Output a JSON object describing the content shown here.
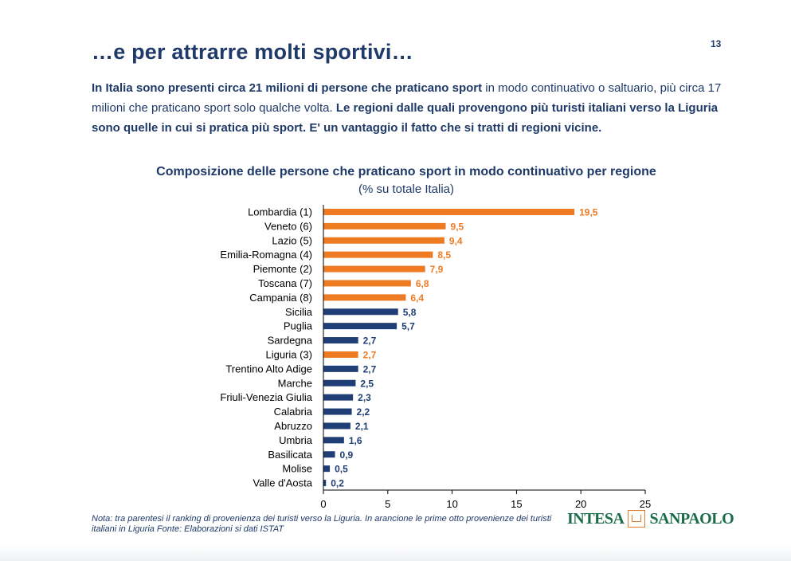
{
  "page": {
    "title": "…e per attrarre molti sportivi…",
    "page_number": "13",
    "intro": {
      "part1_bold": "In Italia sono presenti circa 21 milioni di persone che praticano sport",
      "part2": " in modo continuativo o saltuario, più circa 17 milioni che praticano sport solo qualche volta. ",
      "part3_bold": "Le regioni dalle quali provengono più turisti italiani verso la Liguria sono quelle in cui si pratica più sport. E' un vantaggio il fatto che si tratti di regioni vicine."
    },
    "note": "Nota: tra parentesi il ranking di provenienza dei turisti verso la Liguria. In arancione le prime otto provenienze dei turisti italiani in Liguria Fonte: Elaborazioni si dati ISTAT",
    "logo": {
      "left": "INTESA",
      "right": "SANPAOLO"
    }
  },
  "chart_data": {
    "type": "bar",
    "orientation": "horizontal",
    "title": "Composizione delle persone che praticano sport in modo continuativo per regione",
    "subtitle": "(% su totale Italia)",
    "categories": [
      "Lombardia (1)",
      "Veneto (6)",
      "Lazio (5)",
      "Emilia-Romagna (4)",
      "Piemonte (2)",
      "Toscana (7)",
      "Campania (8)",
      "Sicilia",
      "Puglia",
      "Sardegna",
      "Liguria (3)",
      "Trentino Alto Adige",
      "Marche",
      "Friuli-Venezia Giulia",
      "Calabria",
      "Abruzzo",
      "Umbria",
      "Basilicata",
      "Molise",
      "Valle d'Aosta"
    ],
    "values": [
      19.5,
      9.5,
      9.4,
      8.5,
      7.9,
      6.8,
      6.4,
      5.8,
      5.7,
      2.7,
      2.7,
      2.7,
      2.5,
      2.3,
      2.2,
      2.1,
      1.6,
      0.9,
      0.5,
      0.2
    ],
    "value_labels": [
      "19,5",
      "9,5",
      "9,4",
      "8,5",
      "7,9",
      "6,8",
      "6,4",
      "5,8",
      "5,7",
      "2,7",
      "2,7",
      "2,7",
      "2,5",
      "2,3",
      "2,2",
      "2,1",
      "1,6",
      "0,9",
      "0,5",
      "0,2"
    ],
    "highlight": [
      true,
      true,
      true,
      true,
      true,
      true,
      true,
      false,
      false,
      false,
      true,
      false,
      false,
      false,
      false,
      false,
      false,
      false,
      false,
      false
    ],
    "xlim": [
      0,
      25
    ],
    "xticks": [
      0,
      5,
      10,
      15,
      20,
      25
    ],
    "grid": false,
    "colors": {
      "highlight": "#ee7a22",
      "default": "#1f3e75",
      "axis": "#000000"
    }
  }
}
